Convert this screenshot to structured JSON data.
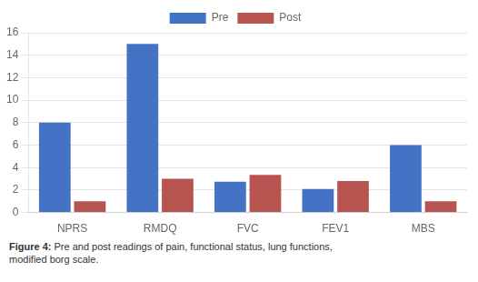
{
  "chart_data": {
    "type": "bar",
    "categories": [
      "NPRS",
      "RMDQ",
      "FVC",
      "FEV1",
      "MBS"
    ],
    "series": [
      {
        "name": "Pre",
        "color": "#4472C4",
        "values": [
          8,
          15,
          2.75,
          2.1,
          6
        ]
      },
      {
        "name": "Post",
        "color": "#B85450",
        "values": [
          1,
          3,
          3.35,
          2.8,
          1
        ]
      }
    ],
    "ylim": [
      0,
      16
    ],
    "yticks": [
      0,
      2,
      4,
      6,
      8,
      10,
      12,
      14,
      16
    ],
    "grid": true,
    "legend": "top",
    "annotations": [
      "Figure 4:",
      " Pre and post readings of pain, functional status, lung functions,\nmodified borg scale."
    ]
  }
}
